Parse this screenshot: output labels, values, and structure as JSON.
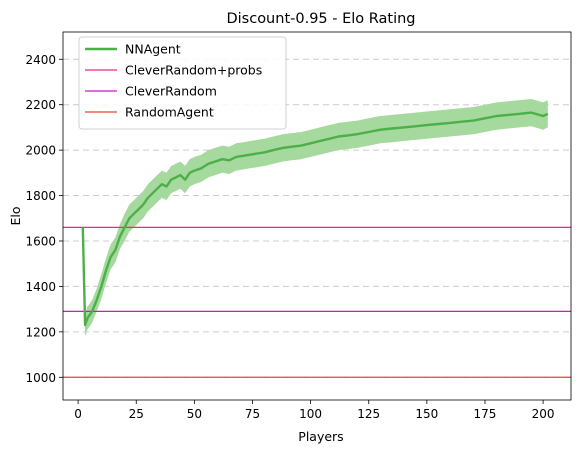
{
  "chart_data": {
    "type": "line",
    "title": "Discount-0.95 - Elo Rating",
    "xlabel": "Players",
    "ylabel": "Elo",
    "xlim": [
      -6.5,
      212
    ],
    "ylim": [
      900,
      2520
    ],
    "xticks": [
      0,
      25,
      50,
      75,
      100,
      125,
      150,
      175,
      200
    ],
    "yticks": [
      1000,
      1200,
      1400,
      1600,
      1800,
      2000,
      2200,
      2400
    ],
    "grid": "y-dashed",
    "legend_position": "upper-left",
    "series": [
      {
        "name": "NNAgent",
        "color": "#4daf4a",
        "band_color": "#a6d99d",
        "x": [
          2,
          3,
          4,
          6,
          8,
          10,
          12,
          14,
          16,
          18,
          20,
          22,
          24,
          26,
          28,
          30,
          32,
          34,
          36,
          38,
          40,
          42,
          44,
          46,
          48,
          50,
          53,
          56,
          59,
          62,
          65,
          68,
          71,
          74,
          77,
          80,
          84,
          88,
          92,
          96,
          100,
          104,
          108,
          112,
          116,
          120,
          125,
          130,
          135,
          140,
          145,
          150,
          155,
          160,
          165,
          170,
          175,
          180,
          185,
          190,
          195,
          200,
          202
        ],
        "y": [
          1660,
          1230,
          1260,
          1290,
          1340,
          1400,
          1470,
          1530,
          1560,
          1620,
          1660,
          1700,
          1720,
          1740,
          1760,
          1790,
          1810,
          1830,
          1850,
          1840,
          1870,
          1880,
          1890,
          1870,
          1900,
          1910,
          1920,
          1940,
          1950,
          1960,
          1955,
          1970,
          1975,
          1980,
          1985,
          1990,
          2000,
          2010,
          2015,
          2020,
          2030,
          2040,
          2050,
          2060,
          2065,
          2070,
          2080,
          2090,
          2095,
          2100,
          2105,
          2110,
          2115,
          2120,
          2125,
          2130,
          2140,
          2150,
          2155,
          2160,
          2165,
          2150,
          2160
        ],
        "band_halfwidth": [
          40,
          50,
          50,
          50,
          50,
          55,
          55,
          55,
          55,
          55,
          60,
          60,
          60,
          60,
          60,
          60,
          60,
          60,
          60,
          60,
          60,
          60,
          60,
          60,
          60,
          60,
          60,
          60,
          60,
          60,
          60,
          60,
          60,
          60,
          60,
          60,
          60,
          60,
          60,
          60,
          60,
          60,
          60,
          60,
          60,
          60,
          60,
          60,
          60,
          60,
          60,
          60,
          60,
          60,
          60,
          60,
          60,
          60,
          60,
          60,
          60,
          60,
          60
        ]
      }
    ],
    "reference_lines": [
      {
        "name": "CleverRandom+probs",
        "y": 1660,
        "color": "#e7298a"
      },
      {
        "name": "CleverRandom",
        "y": 1290,
        "color": "#c51bc5"
      },
      {
        "name": "RandomAgent",
        "y": 1000,
        "color": "#e8472e"
      }
    ]
  }
}
